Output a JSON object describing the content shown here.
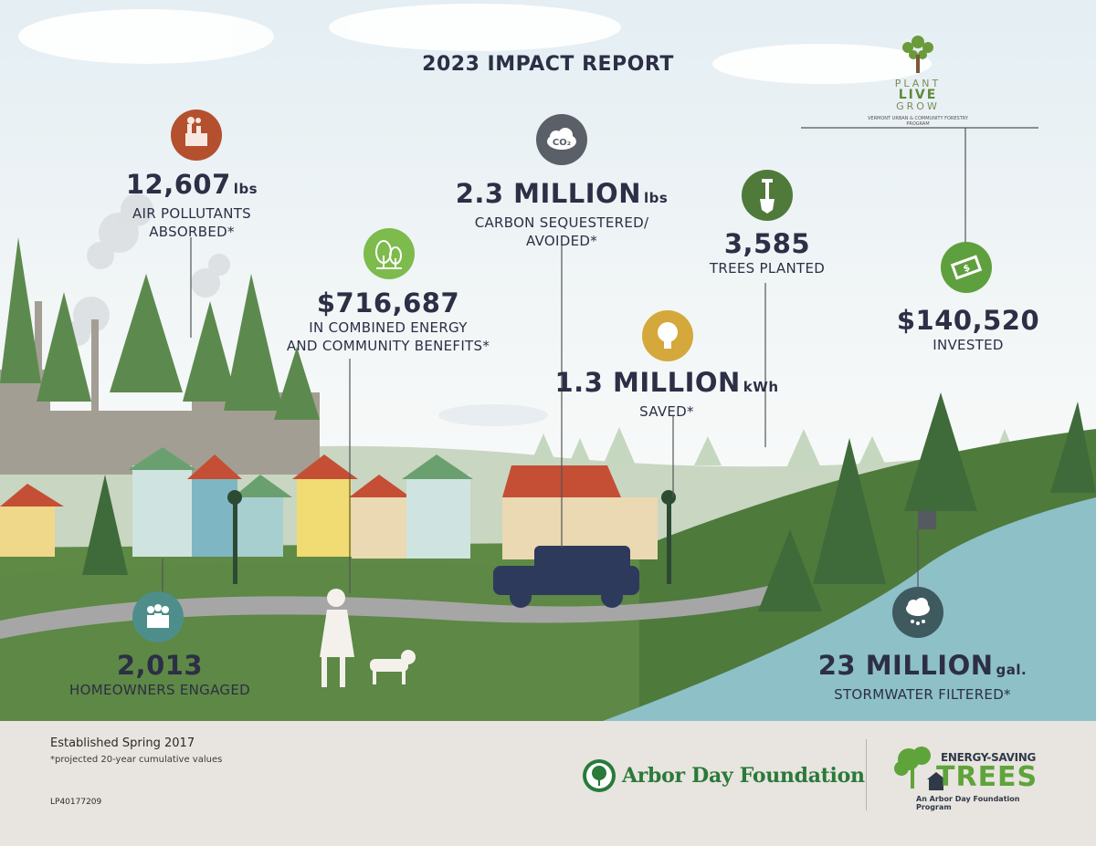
{
  "title": "2023 IMPACT REPORT",
  "partner_logo": {
    "line1": "PLANT",
    "line2": "LIVE",
    "line3": "GROW",
    "subtitle": "VERMONT URBAN & COMMUNITY FORESTRY PROGRAM"
  },
  "stats": {
    "air": {
      "value": "12,607",
      "unit": "lbs",
      "label": "AIR POLLUTANTS\nABSORBED*",
      "icon": "factory-icon",
      "color": "#b4502e"
    },
    "carbon": {
      "value": "2.3 MILLION",
      "unit": "lbs",
      "label": "CARBON SEQUESTERED/\nAVOIDED*",
      "icon": "co2-cloud-icon",
      "color": "#5a5f68"
    },
    "trees": {
      "value": "3,585",
      "unit": "",
      "label": "TREES PLANTED",
      "icon": "shovel-icon",
      "color": "#4f7a3a"
    },
    "invested": {
      "value": "$140,520",
      "unit": "",
      "label": "INVESTED",
      "icon": "money-icon",
      "color": "#5fa03e"
    },
    "benefits": {
      "value": "$716,687",
      "unit": "",
      "label": "IN COMBINED ENERGY\nAND COMMUNITY BENEFITS*",
      "icon": "trees-icon",
      "color": "#7dbb4c"
    },
    "energy": {
      "value": "1.3 MILLION",
      "unit": "kWh",
      "label": "SAVED*",
      "icon": "lightbulb-icon",
      "color": "#d4a83a"
    },
    "homeowners": {
      "value": "2,013",
      "unit": "",
      "label": "HOMEOWNERS ENGAGED",
      "icon": "people-icon",
      "color": "#4e8e8a"
    },
    "stormwater": {
      "value": "23 MILLION",
      "unit": "gal.",
      "label": "STORMWATER FILTERED*",
      "icon": "rain-cloud-icon",
      "color": "#3e5a5e"
    }
  },
  "footer": {
    "established": "Established Spring 2017",
    "note": "*projected 20-year cumulative values",
    "code": "LP40177209",
    "adf": "Arbor Day Foundation",
    "est_top": "ENERGY-SAVING",
    "est_big": "TREES",
    "est_sub": "An Arbor Day Foundation Program"
  }
}
